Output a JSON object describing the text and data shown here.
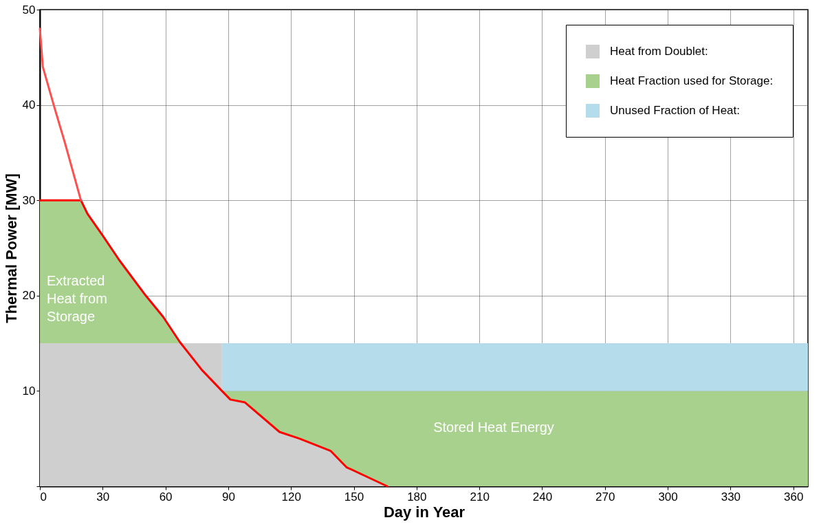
{
  "chart_data": {
    "type": "area",
    "xlabel": "Day in Year",
    "ylabel": "Thermal Power [MW]",
    "stacked": true,
    "grid": true,
    "legend": "top right",
    "xlim": [
      0,
      367
    ],
    "xticks": [
      0,
      30,
      60,
      90,
      120,
      150,
      180,
      210,
      240,
      270,
      300,
      330,
      360
    ],
    "ylim": [
      0,
      50
    ],
    "yticks": [
      {
        "value": 0,
        "label": null
      },
      10,
      20,
      30,
      40,
      50
    ],
    "x": [
      0,
      19.6,
      22.7,
      30,
      38,
      50.6,
      58.8,
      67,
      68,
      77.4,
      87,
      87,
      91,
      98,
      114.5,
      124,
      139,
      146.5,
      166,
      367
    ],
    "series": [
      {
        "name": "Heat from Doublet:",
        "color": "#cfcfcf",
        "values": [
          15,
          15,
          15,
          15,
          15,
          15,
          15,
          15,
          15,
          15,
          15,
          10,
          9.1,
          8.8,
          5.7,
          5,
          3.7,
          2,
          0,
          0
        ]
      },
      {
        "name": "Heat Fraction used for Storage:",
        "color": "#a9d18e",
        "values": [
          null,
          null,
          null,
          null,
          null,
          null,
          null,
          null,
          null,
          null,
          null,
          0,
          0.9,
          1.2,
          4.3,
          5,
          6.3,
          8,
          10,
          10
        ]
      },
      {
        "name": "Unused Fraction of Heat:",
        "color": "#b4dcea",
        "values": [
          null,
          null,
          null,
          null,
          null,
          null,
          null,
          null,
          null,
          null,
          null,
          5,
          5,
          5,
          5,
          5,
          5,
          5,
          5,
          5
        ]
      },
      {
        "color": "#a9d18e",
        "values": [
          15,
          15,
          13.6,
          11.3,
          8.7,
          5,
          2.8,
          0.1,
          0,
          null,
          null,
          null,
          null,
          null,
          null,
          null,
          null,
          null,
          null,
          null
        ]
      },
      {
        "type": "line",
        "color": "#ff0000",
        "x": [
          0,
          19.6,
          22.7,
          30,
          38,
          50.6,
          58.8,
          67,
          77.4,
          87,
          91,
          98,
          114.5,
          124,
          139,
          146.5,
          166
        ],
        "values": [
          30,
          30,
          28.6,
          26.3,
          23.7,
          20,
          17.8,
          15.1,
          12.2,
          10,
          9.1,
          8.8,
          5.7,
          5,
          3.7,
          2,
          0
        ]
      },
      {
        "type": "line",
        "color": "#ff5050",
        "x": [
          0,
          1.4,
          6.6,
          12,
          19.6
        ],
        "values": [
          48,
          44,
          40,
          36,
          30
        ]
      }
    ],
    "annotations": [
      "Extracted Heat from Storage",
      "Stored Heat Energy"
    ]
  }
}
